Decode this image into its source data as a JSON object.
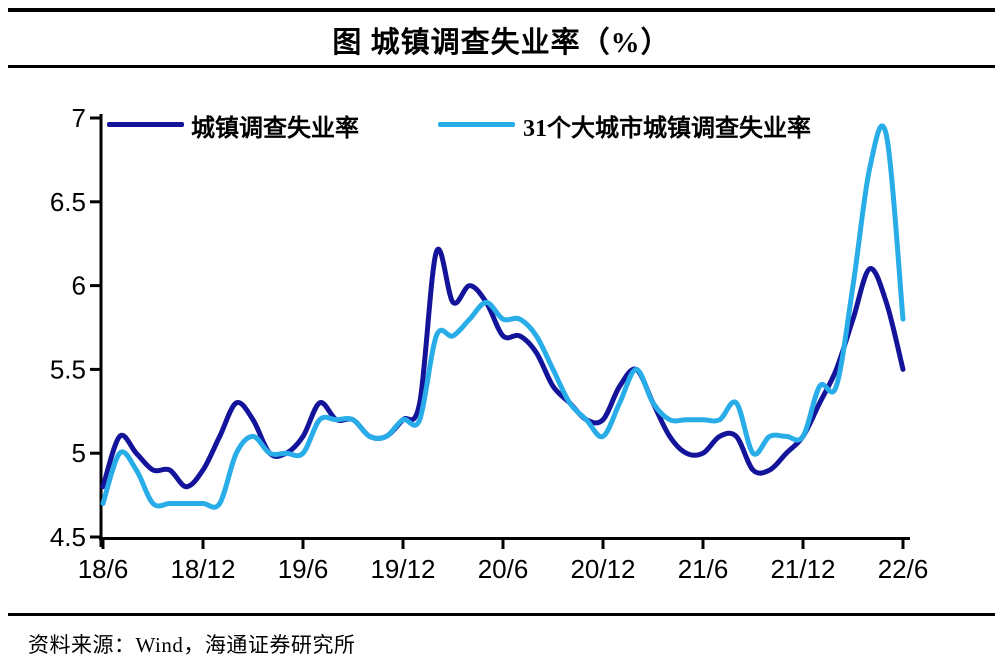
{
  "title": "图 城镇调查失业率（%）",
  "source": "资料来源：Wind，海通证券研究所",
  "chart_data": {
    "type": "line",
    "title": "图 城镇调查失业率（%）",
    "x_unit": "monthly, YY/M",
    "x_range": [
      "18/6",
      "22/6"
    ],
    "x_tick_labels": [
      "18/6",
      "18/12",
      "19/6",
      "19/12",
      "20/6",
      "20/12",
      "21/6",
      "21/12",
      "22/6"
    ],
    "y_tick_labels": [
      "7",
      "6.5",
      "6",
      "5.5",
      "5",
      "4.5"
    ],
    "ylim": [
      4.5,
      7
    ],
    "grid": false,
    "legend_position": "top",
    "series": [
      {
        "name": "城镇调查失业率",
        "color": "#14149B",
        "values": [
          4.8,
          5.1,
          5.0,
          4.9,
          4.9,
          4.8,
          4.9,
          5.1,
          5.3,
          5.2,
          5.0,
          5.0,
          5.1,
          5.3,
          5.2,
          5.2,
          5.1,
          5.1,
          5.2,
          5.3,
          6.2,
          5.9,
          6.0,
          5.9,
          5.7,
          5.7,
          5.6,
          5.4,
          5.3,
          5.2,
          5.2,
          5.4,
          5.5,
          5.3,
          5.1,
          5.0,
          5.0,
          5.1,
          5.1,
          4.9,
          4.9,
          5.0,
          5.1,
          5.3,
          5.5,
          5.8,
          6.1,
          5.9,
          5.5
        ]
      },
      {
        "name": "31个大城市城镇调查失业率",
        "color": "#29ADE8",
        "values": [
          4.7,
          5.0,
          4.9,
          4.7,
          4.7,
          4.7,
          4.7,
          4.7,
          5.0,
          5.1,
          5.0,
          5.0,
          5.0,
          5.2,
          5.2,
          5.2,
          5.1,
          5.1,
          5.2,
          5.2,
          5.7,
          5.7,
          5.8,
          5.9,
          5.8,
          5.8,
          5.7,
          5.5,
          5.3,
          5.2,
          5.1,
          5.3,
          5.5,
          5.3,
          5.2,
          5.2,
          5.2,
          5.2,
          5.3,
          5.0,
          5.1,
          5.1,
          5.1,
          5.4,
          5.4,
          6.0,
          6.7,
          6.9,
          5.8
        ]
      }
    ]
  }
}
